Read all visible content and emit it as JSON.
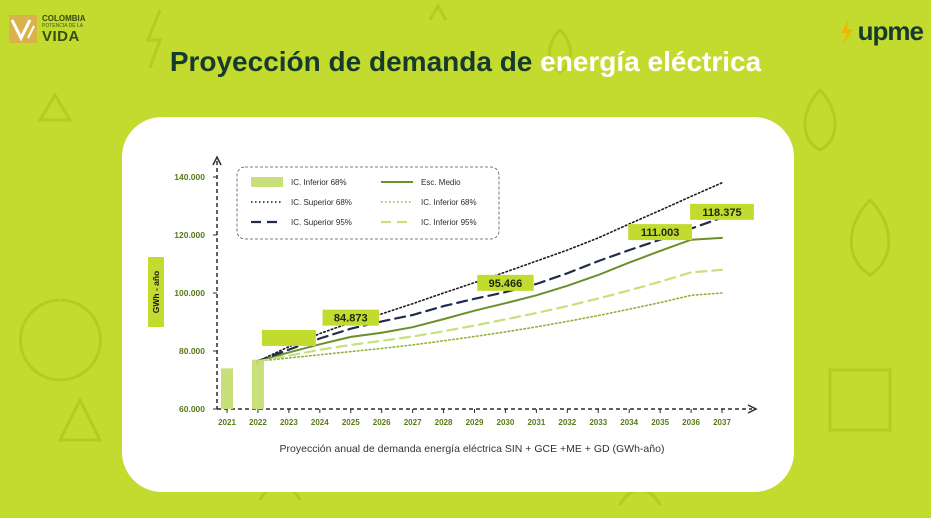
{
  "logos": {
    "left_line1": "COLOMBIA",
    "left_line2": "POTENCIA DE LA",
    "left_line3": "VIDA",
    "right_text": "upme"
  },
  "title": {
    "part1": "Proyección de demanda de ",
    "part2": "energía eléctrica"
  },
  "colors": {
    "background": "#c2db2e",
    "title_dark": "#163a2b",
    "medio": "#6b8f2a",
    "navy": "#1f2d4d",
    "light_green": "#c8e07a",
    "label_box": "#c2db2e"
  },
  "chart_data": {
    "type": "line",
    "xlabel": "Proyección anual de demanda energía eléctrica SIN + GCE +ME + GD (GWh-año)",
    "ylabel": "GWh - año",
    "ylim": [
      60000,
      140000
    ],
    "y_ticks": [
      "60.000",
      "80.000",
      "100.000",
      "120.000",
      "140.000"
    ],
    "y_tick_values": [
      60000,
      80000,
      100000,
      120000,
      140000
    ],
    "categories": [
      "2021",
      "2022",
      "2023",
      "2024",
      "2025",
      "2026",
      "2027",
      "2028",
      "2029",
      "2030",
      "2031",
      "2032",
      "2033",
      "2034",
      "2035",
      "2036",
      "2037"
    ],
    "historical_bars": {
      "name": "IC. Inferior 68%",
      "categories": [
        "2021",
        "2022"
      ],
      "values": [
        74000,
        77000
      ]
    },
    "series": [
      {
        "name": "Esc. Medio",
        "style": "solid",
        "values": [
          null,
          76500,
          79500,
          82300,
          84873,
          86300,
          88200,
          91000,
          93900,
          96500,
          99200,
          102500,
          106200,
          110500,
          114500,
          118375,
          119000
        ]
      },
      {
        "name": "IC. Superior 68%",
        "style": "dotted-dark",
        "values": [
          null,
          76500,
          81500,
          86000,
          89800,
          92800,
          96300,
          100000,
          103600,
          107200,
          111000,
          114800,
          119000,
          123800,
          128500,
          133300,
          138000
        ]
      },
      {
        "name": "IC. Superior 95%",
        "style": "dashed-navy",
        "values": [
          null,
          76500,
          80500,
          84300,
          87700,
          90200,
          92400,
          95466,
          98000,
          100300,
          103100,
          106800,
          111003,
          114800,
          118375,
          122200,
          126000
        ]
      },
      {
        "name": "IC. Inferior 68%",
        "style": "dotted-green",
        "values": [
          null,
          76500,
          77600,
          78700,
          79800,
          80900,
          82100,
          83500,
          85000,
          86600,
          88300,
          90200,
          92200,
          94400,
          96700,
          99200,
          100000
        ]
      },
      {
        "name": "IC. Inferior 95%",
        "style": "dashed-green",
        "values": [
          null,
          76500,
          78400,
          80400,
          82100,
          83500,
          85000,
          86800,
          88800,
          90900,
          93100,
          95500,
          98100,
          100900,
          103900,
          107100,
          108000
        ]
      }
    ],
    "data_labels": [
      {
        "text": "",
        "x": "2023",
        "y": 84500
      },
      {
        "text": "84.873",
        "x": "2025",
        "y": 91500
      },
      {
        "text": "95.466",
        "x": "2030",
        "y": 103500
      },
      {
        "text": "111.003",
        "x": "2035",
        "y": 121000
      },
      {
        "text": "118.375",
        "x": "2037",
        "y": 128000
      }
    ],
    "legend": [
      {
        "label": "IC. Inferior 68%",
        "style": "bar"
      },
      {
        "label": "Esc. Medio",
        "style": "solid"
      },
      {
        "label": "IC. Superior 68%",
        "style": "dotted-dark"
      },
      {
        "label": "IC. Inferior 68%",
        "style": "dotted-green"
      },
      {
        "label": "IC. Superior 95%",
        "style": "dashed-navy"
      },
      {
        "label": "IC. Inferior 95%",
        "style": "dashed-green"
      }
    ],
    "legend_position": "top-left"
  }
}
